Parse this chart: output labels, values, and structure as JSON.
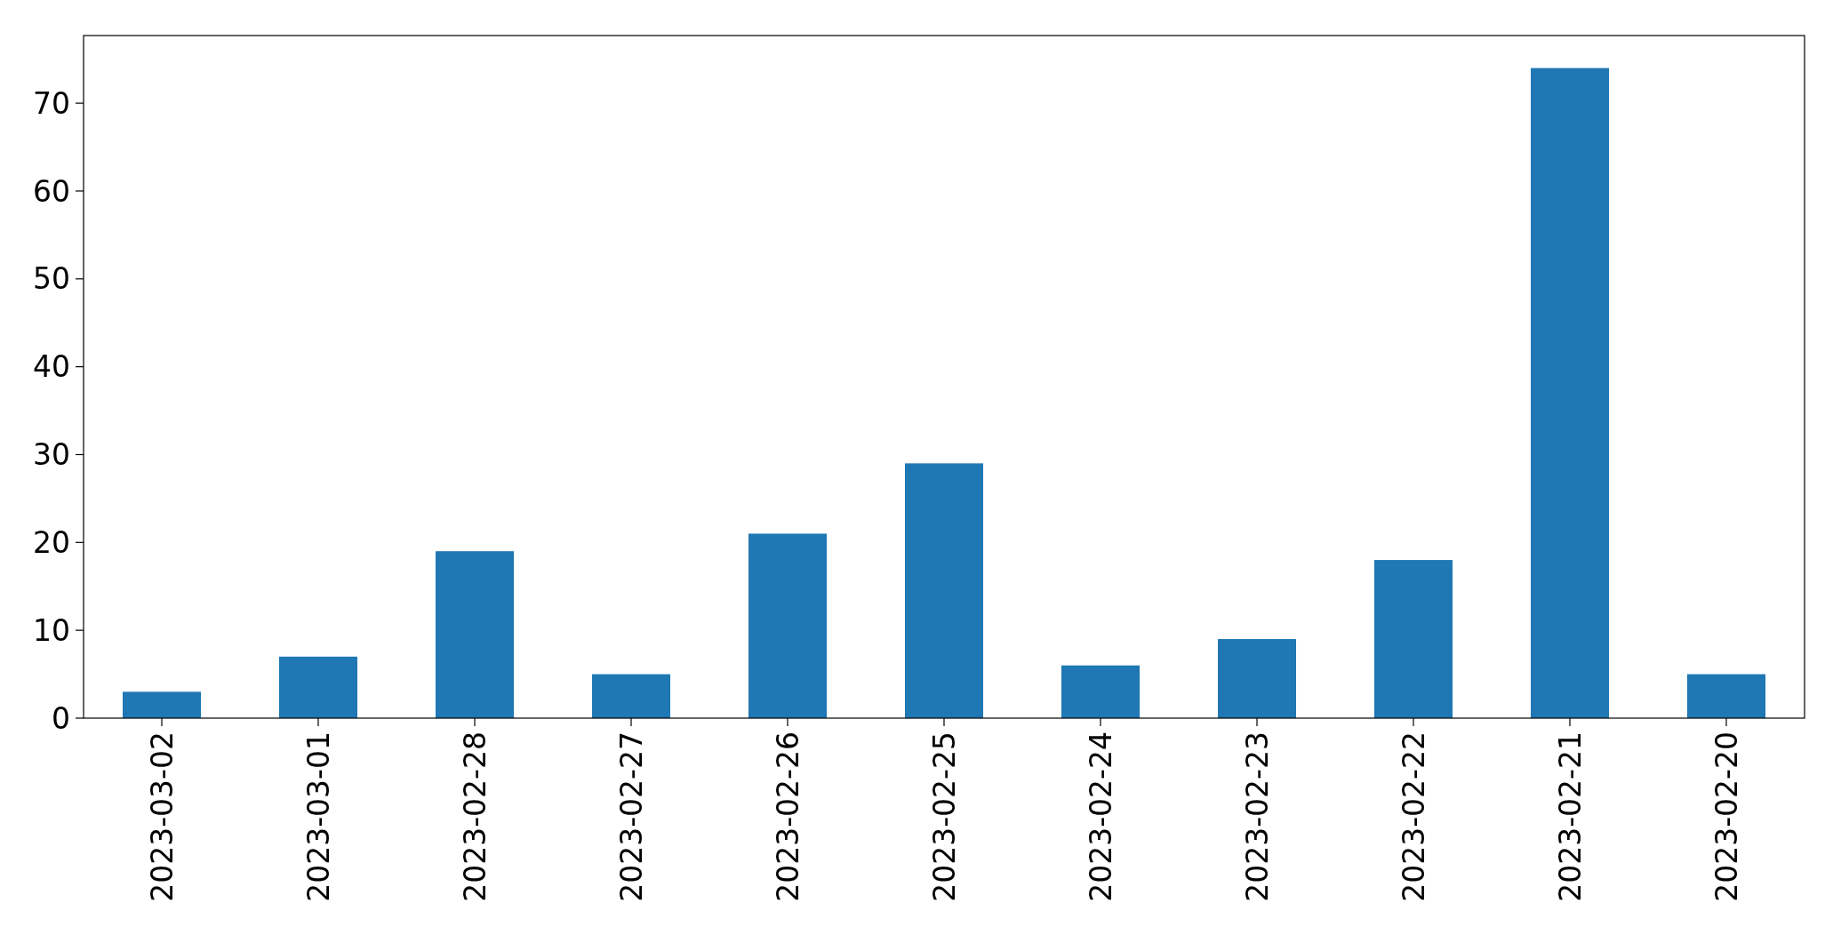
{
  "chart_data": {
    "type": "bar",
    "categories": [
      "2023-03-02",
      "2023-03-01",
      "2023-02-28",
      "2023-02-27",
      "2023-02-26",
      "2023-02-25",
      "2023-02-24",
      "2023-02-23",
      "2023-02-22",
      "2023-02-21",
      "2023-02-20"
    ],
    "values": [
      3,
      7,
      19,
      5,
      21,
      29,
      6,
      9,
      18,
      74,
      5
    ],
    "color": "#1f77b4",
    "ylim": [
      0,
      77.7
    ],
    "yticks": [
      0,
      10,
      20,
      30,
      40,
      50,
      60,
      70
    ],
    "grid": false
  }
}
